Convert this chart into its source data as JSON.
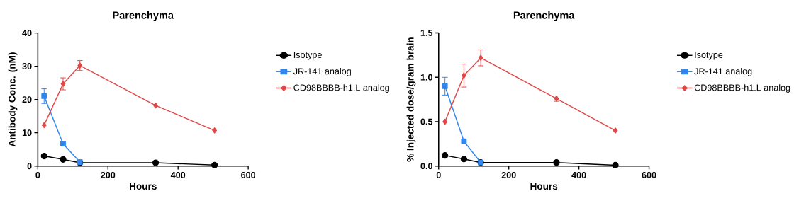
{
  "chart_data": [
    {
      "type": "line",
      "title": "Parenchyma",
      "xlabel": "Hours",
      "ylabel": "Antibody Conc. (nM)",
      "xlim": [
        0,
        600
      ],
      "xticks": [
        0,
        200,
        400,
        600
      ],
      "ylim": [
        0,
        40
      ],
      "yticks": [
        0,
        10,
        20,
        30,
        40
      ],
      "legend": "right",
      "grid": false,
      "series": [
        {
          "name": "Isotype",
          "color": "#000000",
          "marker": "circle",
          "x": [
            18,
            72,
            120,
            336,
            504
          ],
          "values": [
            3.0,
            2.0,
            1.0,
            1.0,
            0.3
          ]
        },
        {
          "name": "JR-141 analog",
          "color": "#2f86ee",
          "marker": "square",
          "x": [
            18,
            72,
            120
          ],
          "values": [
            21.0,
            6.7,
            1.2
          ],
          "errors": [
            2.2,
            null,
            null
          ]
        },
        {
          "name": "CD98BBBB-h1.L analog",
          "color": "#e04848",
          "marker": "diamond",
          "x": [
            18,
            72,
            120,
            336,
            504
          ],
          "values": [
            12.3,
            24.7,
            30.2,
            18.2,
            10.7
          ],
          "errors": [
            null,
            1.8,
            1.5,
            null,
            null
          ]
        }
      ]
    },
    {
      "type": "line",
      "title": "Parenchyma",
      "xlabel": "Hours",
      "ylabel": "% Injected dose/gram brain",
      "xlim": [
        0,
        600
      ],
      "xticks": [
        0,
        200,
        400,
        600
      ],
      "ylim": [
        0,
        1.5
      ],
      "yticks": [
        {
          "value": 0,
          "label": "0.0"
        },
        0.5,
        {
          "value": 1,
          "label": "1.0"
        },
        1.5
      ],
      "legend": "right",
      "grid": false,
      "series": [
        {
          "name": "Isotype",
          "color": "#000000",
          "marker": "circle",
          "x": [
            18,
            72,
            120,
            336,
            504
          ],
          "values": [
            0.12,
            0.08,
            0.04,
            0.04,
            0.01
          ]
        },
        {
          "name": "JR-141 analog",
          "color": "#2f86ee",
          "marker": "square",
          "x": [
            18,
            72,
            120
          ],
          "values": [
            0.9,
            0.28,
            0.04
          ],
          "errors": [
            0.1,
            null,
            null
          ]
        },
        {
          "name": "CD98BBBB-h1.L analog",
          "color": "#e04848",
          "marker": "diamond",
          "x": [
            18,
            72,
            120,
            336,
            504
          ],
          "values": [
            0.5,
            1.02,
            1.22,
            0.76,
            0.4
          ],
          "errors": [
            null,
            0.13,
            0.09,
            0.03,
            null
          ]
        }
      ]
    }
  ]
}
